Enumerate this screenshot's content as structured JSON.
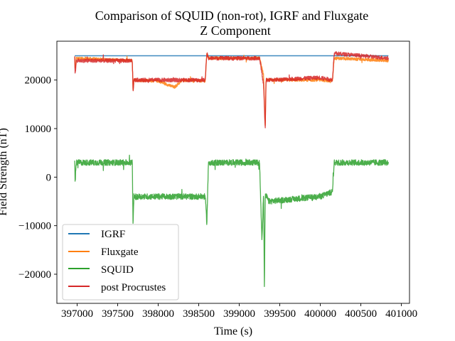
{
  "chart_data": {
    "type": "line",
    "title": "Comparison of SQUID (non-rot), IGRF and Fluxgate",
    "subtitle": "Z Component",
    "xlabel": "Time (s)",
    "ylabel": "Field Strength (nT)",
    "xlim": [
      396750,
      401100
    ],
    "ylim": [
      -26000,
      28000
    ],
    "xticks": [
      397000,
      397500,
      398000,
      398500,
      399000,
      399500,
      400000,
      400500,
      401000
    ],
    "xtick_labels": [
      "397000",
      "397500",
      "398000",
      "398500",
      "399000",
      "399500",
      "400000",
      "400500",
      "401000"
    ],
    "yticks": [
      -20000,
      -10000,
      0,
      10000,
      20000
    ],
    "ytick_labels": [
      "−20000",
      "−10000",
      "0",
      "10000",
      "20000"
    ],
    "grid": false,
    "legend_position": "lower-left",
    "series": [
      {
        "name": "IGRF",
        "color": "#1f77b4",
        "noise": 0,
        "x": [
          396970,
          400840
        ],
        "y": [
          25000,
          25000
        ]
      },
      {
        "name": "Fluxgate",
        "color": "#ff7f0e",
        "noise": 600,
        "x": [
          396970,
          396975,
          396990,
          397680,
          397690,
          397700,
          398000,
          398200,
          398300,
          398580,
          398600,
          398620,
          399250,
          399300,
          399320,
          399330,
          399360,
          400000,
          400150,
          400170,
          400840
        ],
        "y": [
          25000,
          22000,
          24500,
          24000,
          17500,
          20000,
          19800,
          18500,
          20000,
          19800,
          25500,
          24500,
          24500,
          21000,
          10000,
          20000,
          20000,
          20000,
          19800,
          24500,
          24000
        ]
      },
      {
        "name": "SQUID",
        "color": "#2ca02c",
        "noise": 1200,
        "x": [
          396970,
          396975,
          396990,
          397680,
          397690,
          397700,
          398580,
          398600,
          398620,
          399250,
          399280,
          399300,
          399310,
          399320,
          399340,
          399360,
          400000,
          400150,
          400170,
          400840
        ],
        "y": [
          3000,
          -1000,
          3000,
          3000,
          -10000,
          -4000,
          -4000,
          -9500,
          3000,
          3000,
          -13000,
          -3000,
          -23500,
          -4000,
          -4000,
          -5000,
          -4000,
          -3000,
          3000,
          3000
        ]
      },
      {
        "name": "post Procrustes",
        "color": "#d62728",
        "noise": 800,
        "x": [
          396970,
          396975,
          396990,
          397680,
          397690,
          397700,
          398580,
          398600,
          398620,
          399250,
          399300,
          399320,
          399330,
          399360,
          400000,
          400150,
          400170,
          400840
        ],
        "y": [
          24500,
          21000,
          24000,
          24000,
          17500,
          20000,
          20000,
          25500,
          24500,
          24500,
          19000,
          9800,
          20000,
          20000,
          20500,
          20000,
          25500,
          24500
        ]
      }
    ]
  }
}
